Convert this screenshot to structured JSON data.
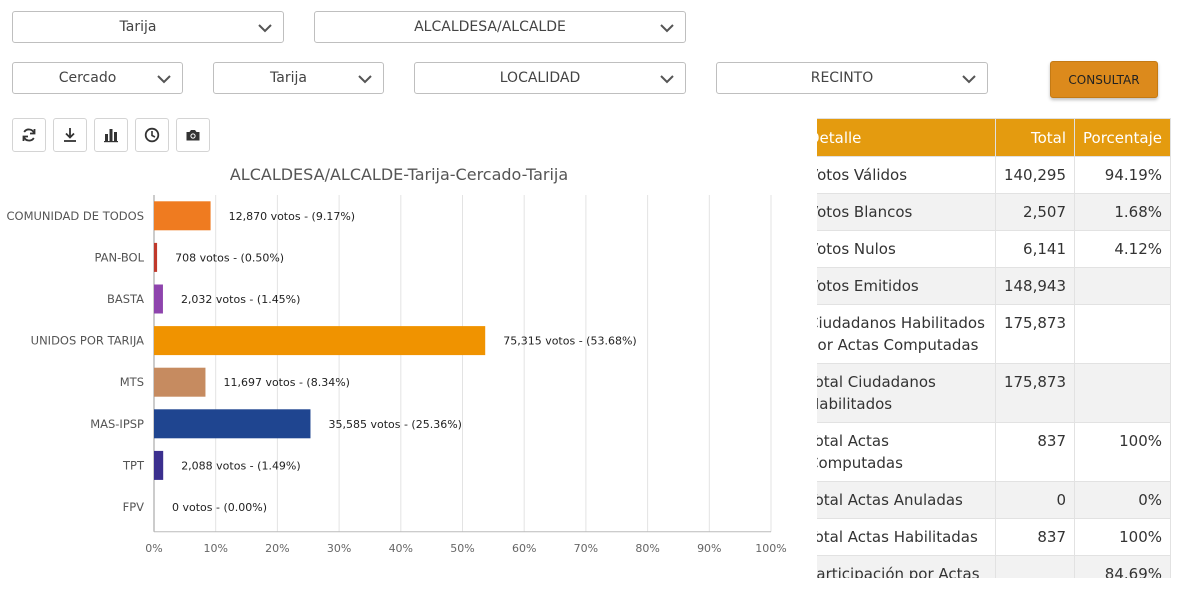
{
  "filters": {
    "departamento": "Tarija",
    "cargo": "ALCALDESA/ALCALDE",
    "provincia": "Cercado",
    "municipio": "Tarija",
    "localidad": "LOCALIDAD",
    "recinto": "RECINTO",
    "consultar": "CONSULTAR"
  },
  "toolbar": {
    "items": [
      "refresh-icon",
      "download-icon",
      "bar-chart-icon",
      "clock-icon",
      "camera-icon"
    ]
  },
  "chart_data": {
    "type": "bar",
    "orientation": "horizontal",
    "title": "ALCALDESA/ALCALDE-Tarija-Cercado-Tarija",
    "categories": [
      "COMUNIDAD DE TODOS",
      "PAN-BOL",
      "BASTA",
      "UNIDOS POR TARIJA",
      "MTS",
      "MAS-IPSP",
      "TPT",
      "FPV"
    ],
    "values": [
      9.17,
      0.5,
      1.45,
      53.68,
      8.34,
      25.36,
      1.49,
      0.0
    ],
    "labels": [
      "12,870 votos - (9.17%)",
      "708 votos - (0.50%)",
      "2,032 votos - (1.45%)",
      "75,315 votos - (53.68%)",
      "11,697 votos - (8.34%)",
      "35,585 votos - (25.36%)",
      "2,088 votos - (1.49%)",
      "0 votos - (0.00%)"
    ],
    "colors": [
      "#ef7b20",
      "#c0392b",
      "#8e44ad",
      "#f09300",
      "#c68b60",
      "#1f4590",
      "#3b2f8e",
      "#999999"
    ],
    "xlim": [
      0,
      100
    ],
    "xticks": [
      "0%",
      "10%",
      "20%",
      "30%",
      "40%",
      "50%",
      "60%",
      "70%",
      "80%",
      "90%",
      "100%"
    ],
    "grid": true
  },
  "table": {
    "headers": [
      "Detalle",
      "Total",
      "Porcentaje"
    ],
    "rows": [
      {
        "label": "Votos Válidos",
        "total": "140,295",
        "pct": "94.19%"
      },
      {
        "label": "Votos Blancos",
        "total": "2,507",
        "pct": "1.68%"
      },
      {
        "label": "Votos Nulos",
        "total": "6,141",
        "pct": "4.12%"
      },
      {
        "label": "Votos Emitidos",
        "total": "148,943",
        "pct": ""
      },
      {
        "label": "Ciudadanos Habilitados por Actas Computadas",
        "total": "175,873",
        "pct": ""
      },
      {
        "label": "Total Ciudadanos Habilitados",
        "total": "175,873",
        "pct": ""
      },
      {
        "label": "Total Actas Computadas",
        "total": "837",
        "pct": "100%"
      },
      {
        "label": "Total Actas Anuladas",
        "total": "0",
        "pct": "0%"
      },
      {
        "label": "Total Actas Habilitadas",
        "total": "837",
        "pct": "100%"
      },
      {
        "label": "Participación por Actas Computadas",
        "total": "",
        "pct": "84.69%"
      }
    ]
  }
}
